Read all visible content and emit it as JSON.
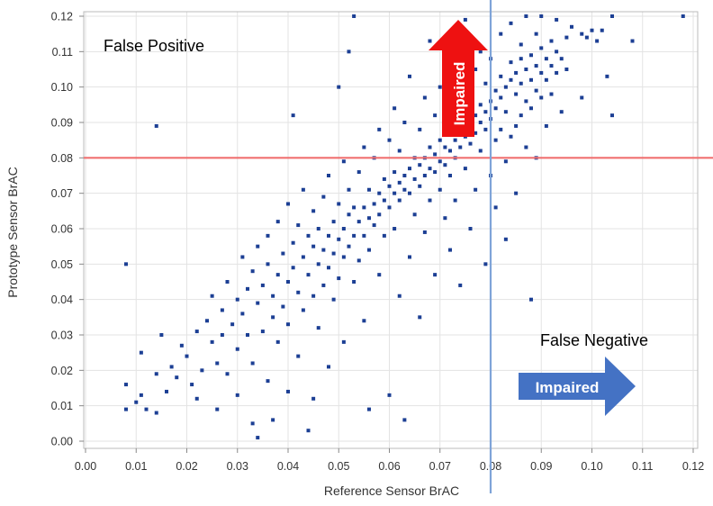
{
  "chart_data": {
    "type": "scatter",
    "xlabel": "Reference Sensor BrAC",
    "ylabel": "Prototype Sensor BrAC",
    "xlim": [
      0.0,
      0.12
    ],
    "ylim": [
      0.0,
      0.12
    ],
    "xticks": [
      "0.00",
      "0.01",
      "0.02",
      "0.03",
      "0.04",
      "0.05",
      "0.06",
      "0.07",
      "0.08",
      "0.09",
      "0.10",
      "0.11",
      "0.12"
    ],
    "yticks": [
      "0.00",
      "0.01",
      "0.02",
      "0.03",
      "0.04",
      "0.05",
      "0.06",
      "0.07",
      "0.08",
      "0.09",
      "0.10",
      "0.11",
      "0.12"
    ],
    "grid": true,
    "threshold_lines": [
      {
        "axis": "x",
        "value": 0.08,
        "color": "#7fa4d8"
      },
      {
        "axis": "y",
        "value": 0.08,
        "color": "#f07070"
      }
    ],
    "marker_color": "#1c3f94",
    "points": [
      [
        0.008,
        0.05
      ],
      [
        0.008,
        0.016
      ],
      [
        0.008,
        0.009
      ],
      [
        0.01,
        0.011
      ],
      [
        0.011,
        0.025
      ],
      [
        0.011,
        0.013
      ],
      [
        0.012,
        0.009
      ],
      [
        0.014,
        0.089
      ],
      [
        0.014,
        0.019
      ],
      [
        0.014,
        0.008
      ],
      [
        0.015,
        0.03
      ],
      [
        0.016,
        0.014
      ],
      [
        0.017,
        0.021
      ],
      [
        0.018,
        0.018
      ],
      [
        0.019,
        0.027
      ],
      [
        0.02,
        0.024
      ],
      [
        0.021,
        0.016
      ],
      [
        0.022,
        0.012
      ],
      [
        0.022,
        0.031
      ],
      [
        0.023,
        0.02
      ],
      [
        0.024,
        0.034
      ],
      [
        0.025,
        0.028
      ],
      [
        0.025,
        0.041
      ],
      [
        0.026,
        0.022
      ],
      [
        0.026,
        0.009
      ],
      [
        0.027,
        0.037
      ],
      [
        0.027,
        0.03
      ],
      [
        0.028,
        0.045
      ],
      [
        0.028,
        0.019
      ],
      [
        0.029,
        0.033
      ],
      [
        0.03,
        0.04
      ],
      [
        0.03,
        0.026
      ],
      [
        0.03,
        0.013
      ],
      [
        0.031,
        0.052
      ],
      [
        0.031,
        0.036
      ],
      [
        0.032,
        0.043
      ],
      [
        0.032,
        0.03
      ],
      [
        0.033,
        0.048
      ],
      [
        0.033,
        0.005
      ],
      [
        0.033,
        0.022
      ],
      [
        0.034,
        0.039
      ],
      [
        0.034,
        0.055
      ],
      [
        0.034,
        0.001
      ],
      [
        0.035,
        0.044
      ],
      [
        0.035,
        0.031
      ],
      [
        0.036,
        0.05
      ],
      [
        0.036,
        0.058
      ],
      [
        0.036,
        0.017
      ],
      [
        0.037,
        0.041
      ],
      [
        0.037,
        0.035
      ],
      [
        0.037,
        0.006
      ],
      [
        0.038,
        0.047
      ],
      [
        0.038,
        0.062
      ],
      [
        0.038,
        0.028
      ],
      [
        0.039,
        0.053
      ],
      [
        0.039,
        0.038
      ],
      [
        0.04,
        0.045
      ],
      [
        0.04,
        0.033
      ],
      [
        0.04,
        0.067
      ],
      [
        0.04,
        0.014
      ],
      [
        0.041,
        0.049
      ],
      [
        0.041,
        0.056
      ],
      [
        0.041,
        0.092
      ],
      [
        0.042,
        0.042
      ],
      [
        0.042,
        0.061
      ],
      [
        0.042,
        0.024
      ],
      [
        0.043,
        0.052
      ],
      [
        0.043,
        0.037
      ],
      [
        0.043,
        0.071
      ],
      [
        0.044,
        0.047
      ],
      [
        0.044,
        0.058
      ],
      [
        0.044,
        0.003
      ],
      [
        0.045,
        0.055
      ],
      [
        0.045,
        0.041
      ],
      [
        0.045,
        0.065
      ],
      [
        0.045,
        0.012
      ],
      [
        0.046,
        0.05
      ],
      [
        0.046,
        0.06
      ],
      [
        0.046,
        0.032
      ],
      [
        0.047,
        0.054
      ],
      [
        0.047,
        0.069
      ],
      [
        0.047,
        0.044
      ],
      [
        0.048,
        0.058
      ],
      [
        0.048,
        0.049
      ],
      [
        0.048,
        0.075
      ],
      [
        0.048,
        0.021
      ],
      [
        0.049,
        0.062
      ],
      [
        0.049,
        0.053
      ],
      [
        0.049,
        0.04
      ],
      [
        0.05,
        0.057
      ],
      [
        0.05,
        0.067
      ],
      [
        0.05,
        0.046
      ],
      [
        0.05,
        0.1
      ],
      [
        0.051,
        0.06
      ],
      [
        0.051,
        0.052
      ],
      [
        0.051,
        0.079
      ],
      [
        0.051,
        0.028
      ],
      [
        0.052,
        0.064
      ],
      [
        0.052,
        0.055
      ],
      [
        0.052,
        0.071
      ],
      [
        0.052,
        0.11
      ],
      [
        0.053,
        0.058
      ],
      [
        0.053,
        0.066
      ],
      [
        0.053,
        0.045
      ],
      [
        0.053,
        0.12
      ],
      [
        0.054,
        0.062
      ],
      [
        0.054,
        0.076
      ],
      [
        0.054,
        0.051
      ],
      [
        0.055,
        0.066
      ],
      [
        0.055,
        0.058
      ],
      [
        0.055,
        0.083
      ],
      [
        0.055,
        0.034
      ],
      [
        0.056,
        0.063
      ],
      [
        0.056,
        0.071
      ],
      [
        0.056,
        0.054
      ],
      [
        0.056,
        0.009
      ],
      [
        0.057,
        0.067
      ],
      [
        0.057,
        0.061
      ],
      [
        0.057,
        0.08
      ],
      [
        0.058,
        0.07
      ],
      [
        0.058,
        0.064
      ],
      [
        0.058,
        0.088
      ],
      [
        0.058,
        0.047
      ],
      [
        0.059,
        0.068
      ],
      [
        0.059,
        0.074
      ],
      [
        0.059,
        0.058
      ],
      [
        0.06,
        0.072
      ],
      [
        0.06,
        0.066
      ],
      [
        0.06,
        0.085
      ],
      [
        0.06,
        0.013
      ],
      [
        0.061,
        0.07
      ],
      [
        0.061,
        0.076
      ],
      [
        0.061,
        0.06
      ],
      [
        0.061,
        0.094
      ],
      [
        0.062,
        0.073
      ],
      [
        0.062,
        0.068
      ],
      [
        0.062,
        0.082
      ],
      [
        0.062,
        0.041
      ],
      [
        0.063,
        0.075
      ],
      [
        0.063,
        0.071
      ],
      [
        0.063,
        0.09
      ],
      [
        0.063,
        0.006
      ],
      [
        0.064,
        0.077
      ],
      [
        0.064,
        0.07
      ],
      [
        0.064,
        0.103
      ],
      [
        0.064,
        0.052
      ],
      [
        0.065,
        0.074
      ],
      [
        0.065,
        0.08
      ],
      [
        0.065,
        0.064
      ],
      [
        0.066,
        0.078
      ],
      [
        0.066,
        0.072
      ],
      [
        0.066,
        0.088
      ],
      [
        0.066,
        0.035
      ],
      [
        0.067,
        0.08
      ],
      [
        0.067,
        0.075
      ],
      [
        0.067,
        0.097
      ],
      [
        0.067,
        0.059
      ],
      [
        0.068,
        0.077
      ],
      [
        0.068,
        0.083
      ],
      [
        0.068,
        0.068
      ],
      [
        0.068,
        0.113
      ],
      [
        0.069,
        0.081
      ],
      [
        0.069,
        0.076
      ],
      [
        0.069,
        0.092
      ],
      [
        0.069,
        0.047
      ],
      [
        0.07,
        0.079
      ],
      [
        0.07,
        0.085
      ],
      [
        0.07,
        0.071
      ],
      [
        0.07,
        0.1
      ],
      [
        0.071,
        0.083
      ],
      [
        0.071,
        0.078
      ],
      [
        0.071,
        0.063
      ],
      [
        0.071,
        0.107
      ],
      [
        0.072,
        0.082
      ],
      [
        0.072,
        0.088
      ],
      [
        0.072,
        0.075
      ],
      [
        0.072,
        0.054
      ],
      [
        0.073,
        0.085
      ],
      [
        0.073,
        0.08
      ],
      [
        0.073,
        0.095
      ],
      [
        0.073,
        0.068
      ],
      [
        0.074,
        0.087
      ],
      [
        0.074,
        0.083
      ],
      [
        0.074,
        0.102
      ],
      [
        0.074,
        0.044
      ],
      [
        0.075,
        0.086
      ],
      [
        0.075,
        0.091
      ],
      [
        0.075,
        0.077
      ],
      [
        0.075,
        0.119
      ],
      [
        0.076,
        0.089
      ],
      [
        0.076,
        0.084
      ],
      [
        0.076,
        0.097
      ],
      [
        0.076,
        0.06
      ],
      [
        0.077,
        0.092
      ],
      [
        0.077,
        0.087
      ],
      [
        0.077,
        0.105
      ],
      [
        0.077,
        0.071
      ],
      [
        0.078,
        0.09
      ],
      [
        0.078,
        0.095
      ],
      [
        0.078,
        0.082
      ],
      [
        0.078,
        0.11
      ],
      [
        0.079,
        0.093
      ],
      [
        0.079,
        0.088
      ],
      [
        0.079,
        0.101
      ],
      [
        0.079,
        0.05
      ],
      [
        0.08,
        0.096
      ],
      [
        0.08,
        0.091
      ],
      [
        0.08,
        0.108
      ],
      [
        0.08,
        0.075
      ],
      [
        0.081,
        0.094
      ],
      [
        0.081,
        0.099
      ],
      [
        0.081,
        0.085
      ],
      [
        0.081,
        0.066
      ],
      [
        0.082,
        0.097
      ],
      [
        0.082,
        0.103
      ],
      [
        0.082,
        0.088
      ],
      [
        0.082,
        0.115
      ],
      [
        0.083,
        0.1
      ],
      [
        0.083,
        0.093
      ],
      [
        0.083,
        0.079
      ],
      [
        0.083,
        0.057
      ],
      [
        0.084,
        0.102
      ],
      [
        0.084,
        0.107
      ],
      [
        0.084,
        0.086
      ],
      [
        0.084,
        0.118
      ],
      [
        0.085,
        0.098
      ],
      [
        0.085,
        0.104
      ],
      [
        0.085,
        0.089
      ],
      [
        0.085,
        0.07
      ],
      [
        0.086,
        0.101
      ],
      [
        0.086,
        0.108
      ],
      [
        0.086,
        0.092
      ],
      [
        0.086,
        0.112
      ],
      [
        0.087,
        0.105
      ],
      [
        0.087,
        0.096
      ],
      [
        0.087,
        0.083
      ],
      [
        0.087,
        0.12
      ],
      [
        0.088,
        0.102
      ],
      [
        0.088,
        0.109
      ],
      [
        0.088,
        0.094
      ],
      [
        0.088,
        0.04
      ],
      [
        0.089,
        0.106
      ],
      [
        0.089,
        0.099
      ],
      [
        0.089,
        0.115
      ],
      [
        0.089,
        0.08
      ],
      [
        0.09,
        0.104
      ],
      [
        0.09,
        0.111
      ],
      [
        0.09,
        0.097
      ],
      [
        0.09,
        0.12
      ],
      [
        0.091,
        0.108
      ],
      [
        0.091,
        0.102
      ],
      [
        0.091,
        0.089
      ],
      [
        0.092,
        0.106
      ],
      [
        0.092,
        0.113
      ],
      [
        0.092,
        0.098
      ],
      [
        0.093,
        0.11
      ],
      [
        0.093,
        0.104
      ],
      [
        0.093,
        0.119
      ],
      [
        0.094,
        0.108
      ],
      [
        0.094,
        0.093
      ],
      [
        0.095,
        0.114
      ],
      [
        0.095,
        0.105
      ],
      [
        0.096,
        0.117
      ],
      [
        0.098,
        0.097
      ],
      [
        0.098,
        0.115
      ],
      [
        0.099,
        0.114
      ],
      [
        0.1,
        0.116
      ],
      [
        0.101,
        0.113
      ],
      [
        0.102,
        0.116
      ],
      [
        0.103,
        0.103
      ],
      [
        0.104,
        0.092
      ],
      [
        0.104,
        0.12
      ],
      [
        0.108,
        0.113
      ],
      [
        0.118,
        0.12
      ]
    ],
    "annotations": {
      "false_positive": "False Positive",
      "false_negative": "False Negative",
      "impaired_up": "Impaired",
      "impaired_right": "Impaired"
    },
    "arrow_colors": {
      "up": "#ee1111",
      "right": "#4472c4"
    }
  }
}
